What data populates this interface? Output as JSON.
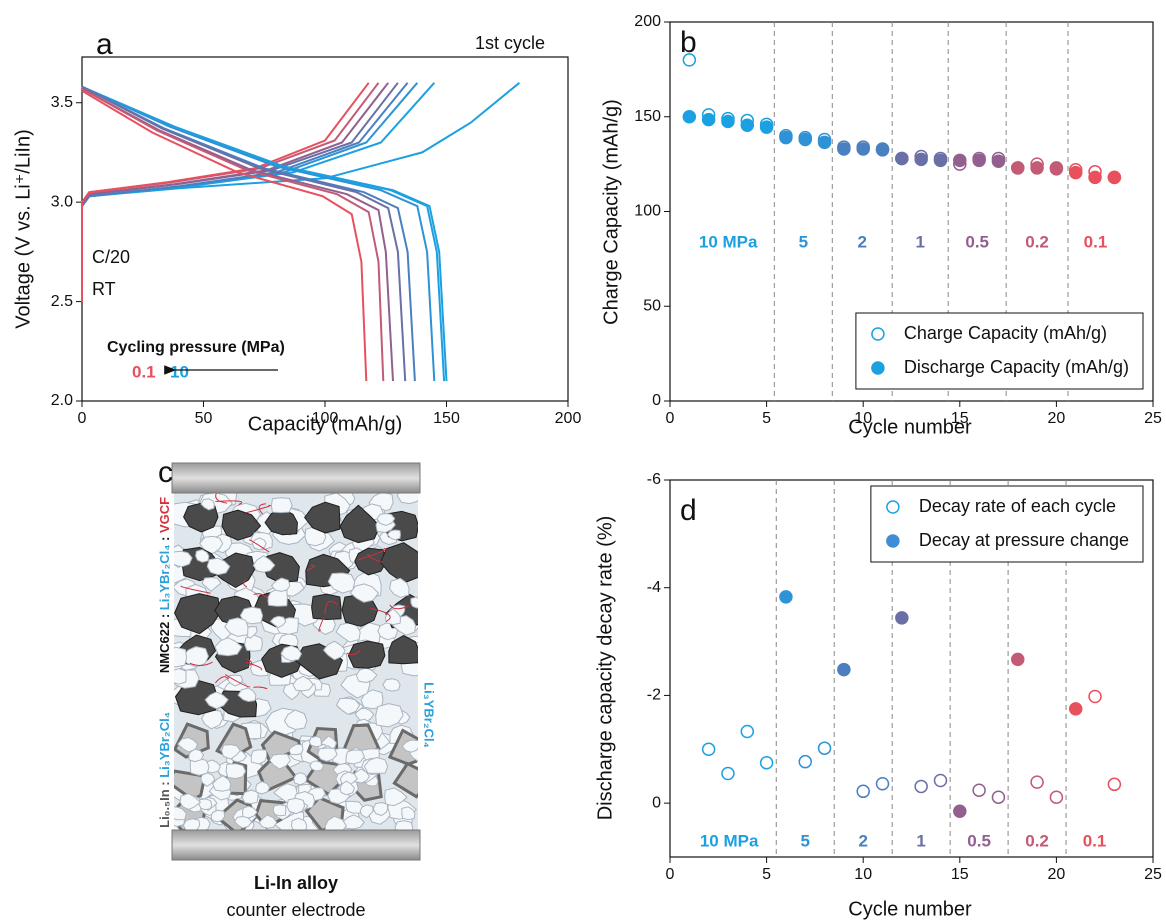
{
  "chart_data": [
    {
      "type": "line",
      "panel": "a",
      "xlabel": "Capacity (mAh/g)",
      "ylabel": "Voltage (V vs. Li⁺/LiIn)",
      "xlim": [
        0,
        200
      ],
      "ylim": [
        2.0,
        3.73
      ],
      "xticks": [
        0,
        50,
        100,
        150,
        200
      ],
      "yticks": [
        {
          "value": 2,
          "label": "2.0"
        },
        2.5,
        {
          "value": 3,
          "label": "3.0"
        },
        3.5
      ],
      "annotations": {
        "first": "1st cycle",
        "rate": "C/20",
        "temp": "RT",
        "pressure_title": "Cycling pressure (MPa)",
        "low": "0.1",
        "high": "10"
      },
      "series": [
        {
          "color": "#1ba1e2",
          "x": [
            0,
            0,
            3,
            40,
            100,
            140,
            160,
            180
          ],
          "values": [
            2.5,
            2.98,
            3.03,
            3.07,
            3.12,
            3.25,
            3.4,
            3.6
          ]
        },
        {
          "color": "#1ba1e2",
          "x": [
            0,
            0,
            3,
            44,
            87,
            123,
            145
          ],
          "values": [
            2.5,
            2.98,
            3.03,
            3.08,
            3.15,
            3.3,
            3.6
          ]
        },
        {
          "color": "#2e93d6",
          "x": [
            0,
            0,
            3,
            41,
            83,
            117,
            138
          ],
          "values": [
            2.5,
            2.98,
            3.03,
            3.08,
            3.15,
            3.3,
            3.6
          ]
        },
        {
          "color": "#4a80c0",
          "x": [
            0,
            0,
            3,
            40,
            80,
            114,
            134
          ],
          "values": [
            2.5,
            2.98,
            3.03,
            3.08,
            3.15,
            3.3,
            3.6
          ]
        },
        {
          "color": "#6a70a6",
          "x": [
            0,
            0,
            3,
            39,
            78,
            111,
            130
          ],
          "values": [
            2.5,
            2.99,
            3.04,
            3.09,
            3.16,
            3.3,
            3.6
          ]
        },
        {
          "color": "#92608e",
          "x": [
            0,
            0,
            3,
            38,
            76,
            107,
            126
          ],
          "values": [
            2.5,
            2.99,
            3.04,
            3.09,
            3.16,
            3.3,
            3.6
          ]
        },
        {
          "color": "#c35a76",
          "x": [
            0,
            0,
            3,
            37,
            73,
            104,
            122
          ],
          "values": [
            2.5,
            3.0,
            3.05,
            3.1,
            3.17,
            3.31,
            3.6
          ]
        },
        {
          "color": "#e8505e",
          "x": [
            0,
            0,
            3,
            35,
            71,
            100,
            118
          ],
          "values": [
            2.5,
            3.0,
            3.05,
            3.1,
            3.17,
            3.31,
            3.6
          ]
        },
        {
          "color": "#1ba1e2",
          "x": [
            0,
            38,
            83,
            128,
            143,
            147,
            150
          ],
          "values": [
            3.58,
            3.38,
            3.18,
            3.06,
            2.98,
            2.75,
            2.1
          ]
        },
        {
          "color": "#1ba1e2",
          "x": [
            0,
            37,
            82,
            127,
            142,
            146,
            149
          ],
          "values": [
            3.58,
            3.38,
            3.18,
            3.06,
            2.98,
            2.75,
            2.1
          ]
        },
        {
          "color": "#2e93d6",
          "x": [
            0,
            36,
            80,
            123,
            138,
            142,
            145
          ],
          "values": [
            3.58,
            3.38,
            3.18,
            3.06,
            2.98,
            2.75,
            2.1
          ]
        },
        {
          "color": "#4a80c0",
          "x": [
            0,
            34,
            75,
            116,
            130,
            134,
            137
          ],
          "values": [
            3.58,
            3.37,
            3.17,
            3.05,
            2.97,
            2.75,
            2.1
          ]
        },
        {
          "color": "#6a70a6",
          "x": [
            0,
            33,
            73,
            113,
            126,
            130,
            133
          ],
          "values": [
            3.58,
            3.37,
            3.17,
            3.05,
            2.97,
            2.75,
            2.1
          ]
        },
        {
          "color": "#92608e",
          "x": [
            0,
            32,
            70,
            109,
            122,
            125,
            128
          ],
          "values": [
            3.57,
            3.36,
            3.16,
            3.04,
            2.96,
            2.75,
            2.1
          ]
        },
        {
          "color": "#c35a76",
          "x": [
            0,
            31,
            68,
            105,
            118,
            122,
            124
          ],
          "values": [
            3.57,
            3.36,
            3.16,
            3.04,
            2.95,
            2.7,
            2.1
          ]
        },
        {
          "color": "#e8505e",
          "x": [
            0,
            29,
            64,
            99,
            111,
            115,
            117
          ],
          "values": [
            3.56,
            3.35,
            3.15,
            3.03,
            2.94,
            2.7,
            2.1
          ]
        }
      ]
    },
    {
      "type": "scatter",
      "panel": "b",
      "xlabel": "Cycle number",
      "ylabel": "Charge Capacity (mAh/g)",
      "xlim": [
        0,
        25
      ],
      "ylim": [
        0,
        200
      ],
      "xticks": [
        0,
        5,
        10,
        15,
        20,
        25
      ],
      "yticks": [
        0,
        50,
        100,
        150,
        200
      ],
      "dividers": [
        5.4,
        8.4,
        11.5,
        14.4,
        17.4,
        20.6
      ],
      "regions": [
        {
          "label": "10 MPa",
          "color": "#1ba1e2"
        },
        {
          "label": "5",
          "color": "#2e93d6"
        },
        {
          "label": "2",
          "color": "#4a80c0"
        },
        {
          "label": "1",
          "color": "#6a70a6"
        },
        {
          "label": "0.5",
          "color": "#92608e"
        },
        {
          "label": "0.2",
          "color": "#c35a76"
        },
        {
          "label": "0.1",
          "color": "#e8505e"
        }
      ],
      "legend": "lower right",
      "series": [
        {
          "name": "Charge Capacity (mAh/g)",
          "filled": false,
          "color": "#1ba1e2",
          "x": [
            1,
            2,
            3,
            4,
            5,
            6,
            7,
            8,
            9,
            10,
            11,
            12,
            13,
            14,
            15,
            16,
            17,
            18,
            19,
            20,
            21,
            22,
            23
          ],
          "values": [
            180,
            151,
            149,
            148,
            146,
            140,
            139,
            138,
            134,
            134,
            133,
            128,
            129,
            128,
            125,
            128,
            128,
            123,
            125,
            123,
            122,
            121,
            118
          ],
          "colors": [
            "#1ba1e2",
            "#1ba1e2",
            "#1ba1e2",
            "#1ba1e2",
            "#1ba1e2",
            "#2e93d6",
            "#2e93d6",
            "#2e93d6",
            "#4a80c0",
            "#4a80c0",
            "#4a80c0",
            "#6a70a6",
            "#6a70a6",
            "#6a70a6",
            "#92608e",
            "#92608e",
            "#92608e",
            "#c35a76",
            "#c35a76",
            "#c35a76",
            "#e8505e",
            "#e8505e",
            "#e8505e"
          ]
        },
        {
          "name": "Discharge Capacity (mAh/g)",
          "filled": true,
          "color": "#1ba1e2",
          "x": [
            1,
            2,
            3,
            4,
            5,
            6,
            7,
            8,
            9,
            10,
            11,
            12,
            13,
            14,
            15,
            16,
            17,
            18,
            19,
            20,
            21,
            22,
            23
          ],
          "values": [
            150,
            148.5,
            147.5,
            145.5,
            144.5,
            139,
            138,
            136.5,
            133,
            133,
            132.5,
            128,
            127.5,
            127,
            127,
            127,
            126.5,
            123,
            123,
            122.5,
            120.5,
            118,
            118
          ],
          "colors": [
            "#1ba1e2",
            "#1ba1e2",
            "#1ba1e2",
            "#1ba1e2",
            "#1ba1e2",
            "#2e93d6",
            "#2e93d6",
            "#2e93d6",
            "#4a80c0",
            "#4a80c0",
            "#4a80c0",
            "#6a70a6",
            "#6a70a6",
            "#6a70a6",
            "#92608e",
            "#92608e",
            "#92608e",
            "#c35a76",
            "#c35a76",
            "#c35a76",
            "#e8505e",
            "#e8505e",
            "#e8505e"
          ]
        }
      ]
    },
    {
      "type": "scatter",
      "panel": "d",
      "xlabel": "Cycle number",
      "ylabel": "Discharge capacity decay rate (%)",
      "xlim": [
        0,
        25
      ],
      "ylim": [
        1,
        -6
      ],
      "xticks": [
        0,
        5,
        10,
        15,
        20,
        25
      ],
      "yticks": [
        -6,
        -4,
        -2,
        0
      ],
      "dividers": [
        5.5,
        8.5,
        11.5,
        14.5,
        17.5,
        20.5
      ],
      "regions": [
        {
          "label": "10 MPa",
          "color": "#1ba1e2"
        },
        {
          "label": "5",
          "color": "#2e93d6"
        },
        {
          "label": "2",
          "color": "#4a80c0"
        },
        {
          "label": "1",
          "color": "#6a70a6"
        },
        {
          "label": "0.5",
          "color": "#92608e"
        },
        {
          "label": "0.2",
          "color": "#c35a76"
        },
        {
          "label": "0.1",
          "color": "#e8505e"
        }
      ],
      "legend": "upper right",
      "series": [
        {
          "name": "Decay rate of each cycle",
          "filled": false,
          "color": "#1ba1e2",
          "x": [
            2,
            3,
            4,
            5,
            7,
            8,
            10,
            11,
            13,
            14,
            16,
            17,
            19,
            20,
            22,
            23
          ],
          "values": [
            -1.0,
            -0.55,
            -1.33,
            -0.75,
            -0.77,
            -1.02,
            -0.22,
            -0.36,
            -0.31,
            -0.42,
            -0.24,
            -0.11,
            -0.39,
            -0.11,
            -1.98,
            -0.35
          ],
          "colors": [
            "#1ba1e2",
            "#1ba1e2",
            "#1ba1e2",
            "#1ba1e2",
            "#2e93d6",
            "#2e93d6",
            "#4a80c0",
            "#4a80c0",
            "#6a70a6",
            "#6a70a6",
            "#92608e",
            "#92608e",
            "#c35a76",
            "#c35a76",
            "#e8505e",
            "#e8505e"
          ]
        },
        {
          "name": "Decay at pressure change",
          "filled": true,
          "color": "#3d8ed4",
          "x": [
            6,
            9,
            12,
            15,
            18,
            21
          ],
          "values": [
            -3.83,
            -2.48,
            -3.44,
            0.15,
            -2.67,
            -1.75
          ],
          "colors": [
            "#2e93d6",
            "#4a80c0",
            "#6a70a6",
            "#92608e",
            "#c35a76",
            "#e8505e"
          ]
        }
      ]
    }
  ],
  "illustration": {
    "panel": "c",
    "cathode_label": [
      "NMC622",
      " : ",
      "Li₃YBr₂Cl₄",
      " : ",
      "VGCF"
    ],
    "anode_label": [
      "Li₀.₅In",
      " : ",
      "Li₃YBr₂Cl₄"
    ],
    "separator_label": "Li₃YBr₂Cl₄",
    "title": "Li-In alloy",
    "subtitle": "counter electrode"
  }
}
